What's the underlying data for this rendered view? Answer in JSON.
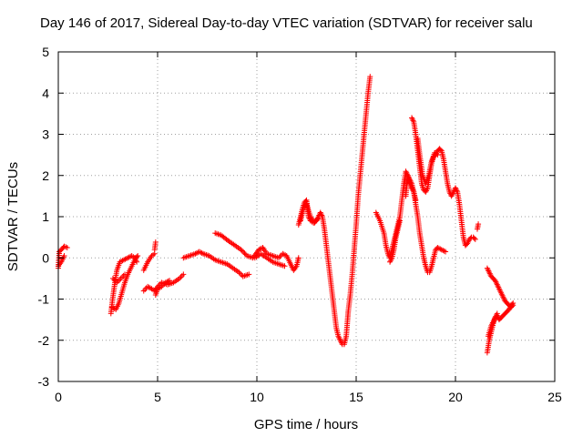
{
  "chart_data": {
    "type": "scatter",
    "title": "Day 146 of 2017, Sidereal Day-to-day VTEC variation (SDTVAR) for receiver salu",
    "xlabel": "GPS time / hours",
    "ylabel": "SDTVAR / TECUs",
    "xlim": [
      0,
      25
    ],
    "ylim": [
      -3,
      5
    ],
    "xticks": [
      "0",
      "5",
      "10",
      "15",
      "20",
      "25"
    ],
    "yticks": [
      "-3",
      "-2",
      "-1",
      "0",
      "1",
      "2",
      "3",
      "4",
      "5"
    ],
    "grid": true,
    "marker": "plus",
    "series": [
      {
        "name": "SDTVAR",
        "color": "#ff0000",
        "segments": [
          [
            [
              0.0,
              -0.25
            ],
            [
              0.05,
              0.15
            ],
            [
              0.15,
              0.2
            ],
            [
              0.3,
              0.28
            ],
            [
              0.45,
              0.25
            ]
          ],
          [
            [
              0.0,
              -0.2
            ],
            [
              0.15,
              -0.1
            ],
            [
              0.3,
              0.05
            ]
          ],
          [
            [
              2.65,
              -1.35
            ],
            [
              2.75,
              -0.95
            ],
            [
              2.85,
              -0.6
            ],
            [
              2.95,
              -0.3
            ],
            [
              3.1,
              -0.1
            ],
            [
              3.3,
              -0.05
            ],
            [
              3.5,
              0.0
            ],
            [
              3.7,
              0.05
            ],
            [
              3.85,
              0.0
            ],
            [
              3.95,
              -0.1
            ]
          ],
          [
            [
              2.7,
              -1.2
            ],
            [
              2.9,
              -1.25
            ],
            [
              3.05,
              -1.1
            ],
            [
              3.2,
              -0.85
            ],
            [
              3.35,
              -0.6
            ],
            [
              3.5,
              -0.4
            ],
            [
              3.7,
              -0.2
            ],
            [
              3.9,
              0.0
            ],
            [
              4.0,
              0.05
            ]
          ],
          [
            [
              2.75,
              -0.5
            ],
            [
              2.95,
              -0.6
            ],
            [
              3.15,
              -0.5
            ],
            [
              3.35,
              -0.4
            ]
          ],
          [
            [
              4.3,
              -0.8
            ],
            [
              4.5,
              -0.7
            ],
            [
              4.7,
              -0.75
            ],
            [
              4.85,
              -0.8
            ],
            [
              5.0,
              -0.7
            ],
            [
              5.2,
              -0.6
            ],
            [
              5.5,
              -0.65
            ],
            [
              5.8,
              -0.6
            ],
            [
              6.1,
              -0.5
            ],
            [
              6.3,
              -0.4
            ]
          ],
          [
            [
              4.3,
              -0.3
            ],
            [
              4.5,
              -0.1
            ],
            [
              4.7,
              0.05
            ],
            [
              4.85,
              0.1
            ]
          ],
          [
            [
              4.9,
              -0.9
            ],
            [
              5.0,
              -0.75
            ],
            [
              5.2,
              -0.7
            ],
            [
              5.4,
              -0.6
            ],
            [
              5.6,
              -0.55
            ]
          ],
          [
            [
              4.85,
              0.2
            ],
            [
              4.9,
              0.38
            ]
          ],
          [
            [
              6.3,
              0.0
            ],
            [
              6.6,
              0.05
            ],
            [
              6.9,
              0.1
            ],
            [
              7.1,
              0.15
            ],
            [
              7.3,
              0.1
            ],
            [
              7.6,
              0.05
            ],
            [
              7.9,
              -0.05
            ],
            [
              8.2,
              -0.1
            ],
            [
              8.5,
              -0.15
            ],
            [
              8.8,
              -0.25
            ],
            [
              9.1,
              -0.35
            ],
            [
              9.3,
              -0.45
            ],
            [
              9.6,
              -0.4
            ]
          ],
          [
            [
              7.9,
              0.6
            ],
            [
              8.2,
              0.55
            ],
            [
              8.6,
              0.4
            ],
            [
              8.9,
              0.3
            ],
            [
              9.2,
              0.2
            ],
            [
              9.5,
              0.05
            ],
            [
              9.8,
              0.0
            ],
            [
              10.1,
              0.2
            ],
            [
              10.3,
              0.25
            ],
            [
              10.5,
              0.1
            ],
            [
              10.8,
              0.05
            ],
            [
              11.1,
              0.0
            ],
            [
              11.3,
              0.1
            ],
            [
              11.5,
              0.05
            ],
            [
              11.7,
              -0.15
            ],
            [
              11.85,
              -0.3
            ],
            [
              12.0,
              -0.2
            ],
            [
              12.1,
              0.0
            ]
          ],
          [
            [
              9.9,
              0.0
            ],
            [
              10.2,
              0.1
            ],
            [
              10.5,
              0.0
            ],
            [
              10.8,
              -0.1
            ],
            [
              11.1,
              -0.15
            ],
            [
              11.4,
              -0.2
            ]
          ],
          [
            [
              12.1,
              0.8
            ],
            [
              12.2,
              1.0
            ],
            [
              12.3,
              1.2
            ],
            [
              12.4,
              1.35
            ],
            [
              12.5,
              1.4
            ],
            [
              12.55,
              1.2
            ],
            [
              12.6,
              1.0
            ],
            [
              12.7,
              0.9
            ],
            [
              12.85,
              0.85
            ],
            [
              13.0,
              0.9
            ],
            [
              13.1,
              1.0
            ],
            [
              13.2,
              1.1
            ],
            [
              13.3,
              1.0
            ],
            [
              13.4,
              0.7
            ],
            [
              13.5,
              0.3
            ],
            [
              13.6,
              -0.1
            ],
            [
              13.7,
              -0.5
            ],
            [
              13.8,
              -0.9
            ],
            [
              13.9,
              -1.3
            ],
            [
              14.0,
              -1.7
            ],
            [
              14.1,
              -1.9
            ],
            [
              14.2,
              -2.0
            ],
            [
              14.3,
              -2.1
            ],
            [
              14.4,
              -2.1
            ],
            [
              14.5,
              -1.9
            ],
            [
              14.55,
              -1.6
            ],
            [
              14.6,
              -1.3
            ],
            [
              14.7,
              -0.9
            ],
            [
              14.8,
              -0.4
            ],
            [
              14.9,
              0.2
            ],
            [
              15.0,
              0.8
            ],
            [
              15.1,
              1.5
            ],
            [
              15.2,
              2.0
            ],
            [
              15.3,
              2.5
            ],
            [
              15.4,
              3.0
            ],
            [
              15.5,
              3.5
            ],
            [
              15.6,
              4.0
            ],
            [
              15.7,
              4.4
            ]
          ],
          [
            [
              12.2,
              0.9
            ],
            [
              12.35,
              1.2
            ],
            [
              12.5,
              1.3
            ],
            [
              12.7,
              1.0
            ],
            [
              12.9,
              0.85
            ],
            [
              13.05,
              0.95
            ]
          ],
          [
            [
              16.0,
              1.1
            ],
            [
              16.2,
              0.9
            ],
            [
              16.4,
              0.6
            ],
            [
              16.5,
              0.3
            ],
            [
              16.6,
              0.1
            ],
            [
              16.7,
              0.0
            ],
            [
              16.8,
              0.2
            ],
            [
              16.9,
              0.4
            ],
            [
              17.0,
              0.6
            ],
            [
              17.1,
              0.8
            ],
            [
              17.2,
              1.0
            ],
            [
              17.3,
              1.4
            ],
            [
              17.4,
              1.8
            ],
            [
              17.5,
              2.1
            ],
            [
              17.6,
              2.0
            ],
            [
              17.7,
              1.9
            ],
            [
              17.8,
              1.8
            ],
            [
              17.9,
              1.6
            ],
            [
              18.0,
              1.3
            ],
            [
              18.1,
              1.0
            ],
            [
              18.2,
              0.6
            ],
            [
              18.3,
              0.3
            ],
            [
              18.4,
              0.0
            ],
            [
              18.5,
              -0.2
            ],
            [
              18.6,
              -0.35
            ],
            [
              18.7,
              -0.35
            ],
            [
              18.8,
              -0.2
            ],
            [
              18.9,
              0.0
            ],
            [
              19.0,
              0.2
            ],
            [
              19.1,
              0.25
            ],
            [
              19.3,
              0.2
            ],
            [
              19.5,
              0.15
            ]
          ],
          [
            [
              16.7,
              -0.1
            ],
            [
              16.8,
              0.0
            ],
            [
              16.9,
              0.2
            ],
            [
              17.0,
              0.5
            ],
            [
              17.1,
              0.7
            ],
            [
              17.2,
              0.9
            ]
          ],
          [
            [
              17.5,
              1.5
            ],
            [
              17.6,
              2.0
            ],
            [
              17.7,
              1.8
            ],
            [
              17.8,
              1.7
            ],
            [
              17.9,
              1.6
            ],
            [
              18.0,
              1.4
            ]
          ],
          [
            [
              17.8,
              3.4
            ],
            [
              17.9,
              3.3
            ],
            [
              18.0,
              3.0
            ],
            [
              18.1,
              2.6
            ],
            [
              18.2,
              2.2
            ],
            [
              18.3,
              1.8
            ],
            [
              18.4,
              1.65
            ],
            [
              18.5,
              1.6
            ],
            [
              18.6,
              1.7
            ],
            [
              18.7,
              2.0
            ],
            [
              18.8,
              2.3
            ],
            [
              18.9,
              2.45
            ],
            [
              19.0,
              2.5
            ],
            [
              19.1,
              2.6
            ],
            [
              19.2,
              2.65
            ],
            [
              19.3,
              2.6
            ],
            [
              19.4,
              2.4
            ],
            [
              19.5,
              2.1
            ],
            [
              19.6,
              1.8
            ],
            [
              19.7,
              1.6
            ],
            [
              19.8,
              1.5
            ],
            [
              19.9,
              1.6
            ],
            [
              20.0,
              1.7
            ],
            [
              20.1,
              1.6
            ],
            [
              20.2,
              1.3
            ],
            [
              20.3,
              0.9
            ],
            [
              20.4,
              0.5
            ],
            [
              20.5,
              0.3
            ],
            [
              20.6,
              0.35
            ],
            [
              20.7,
              0.45
            ],
            [
              20.8,
              0.5
            ],
            [
              20.9,
              0.5
            ],
            [
              21.0,
              0.45
            ]
          ],
          [
            [
              18.1,
              2.9
            ],
            [
              18.2,
              2.5
            ],
            [
              18.35,
              2.0
            ],
            [
              18.5,
              1.8
            ],
            [
              18.65,
              2.0
            ],
            [
              18.8,
              2.35
            ],
            [
              18.95,
              2.55
            ],
            [
              19.1,
              2.5
            ]
          ],
          [
            [
              21.1,
              0.7
            ],
            [
              21.15,
              0.82
            ]
          ],
          [
            [
              21.6,
              -2.3
            ],
            [
              21.7,
              -2.0
            ],
            [
              21.8,
              -1.8
            ],
            [
              21.9,
              -1.6
            ],
            [
              22.0,
              -1.45
            ],
            [
              22.1,
              -1.4
            ],
            [
              22.2,
              -1.5
            ],
            [
              22.3,
              -1.45
            ],
            [
              22.4,
              -1.4
            ],
            [
              22.5,
              -1.35
            ],
            [
              22.6,
              -1.3
            ],
            [
              22.7,
              -1.25
            ],
            [
              22.8,
              -1.15
            ],
            [
              22.9,
              -1.1
            ]
          ],
          [
            [
              21.6,
              -0.25
            ],
            [
              21.7,
              -0.35
            ],
            [
              21.8,
              -0.45
            ],
            [
              21.9,
              -0.5
            ],
            [
              22.0,
              -0.55
            ],
            [
              22.1,
              -0.65
            ],
            [
              22.2,
              -0.75
            ],
            [
              22.3,
              -0.85
            ],
            [
              22.4,
              -0.95
            ],
            [
              22.5,
              -1.05
            ],
            [
              22.6,
              -1.1
            ],
            [
              22.7,
              -1.15
            ],
            [
              22.8,
              -1.2
            ],
            [
              22.9,
              -1.15
            ]
          ],
          [
            [
              21.65,
              -1.9
            ],
            [
              21.8,
              -1.65
            ],
            [
              21.95,
              -1.5
            ],
            [
              22.1,
              -1.35
            ]
          ]
        ]
      }
    ]
  }
}
